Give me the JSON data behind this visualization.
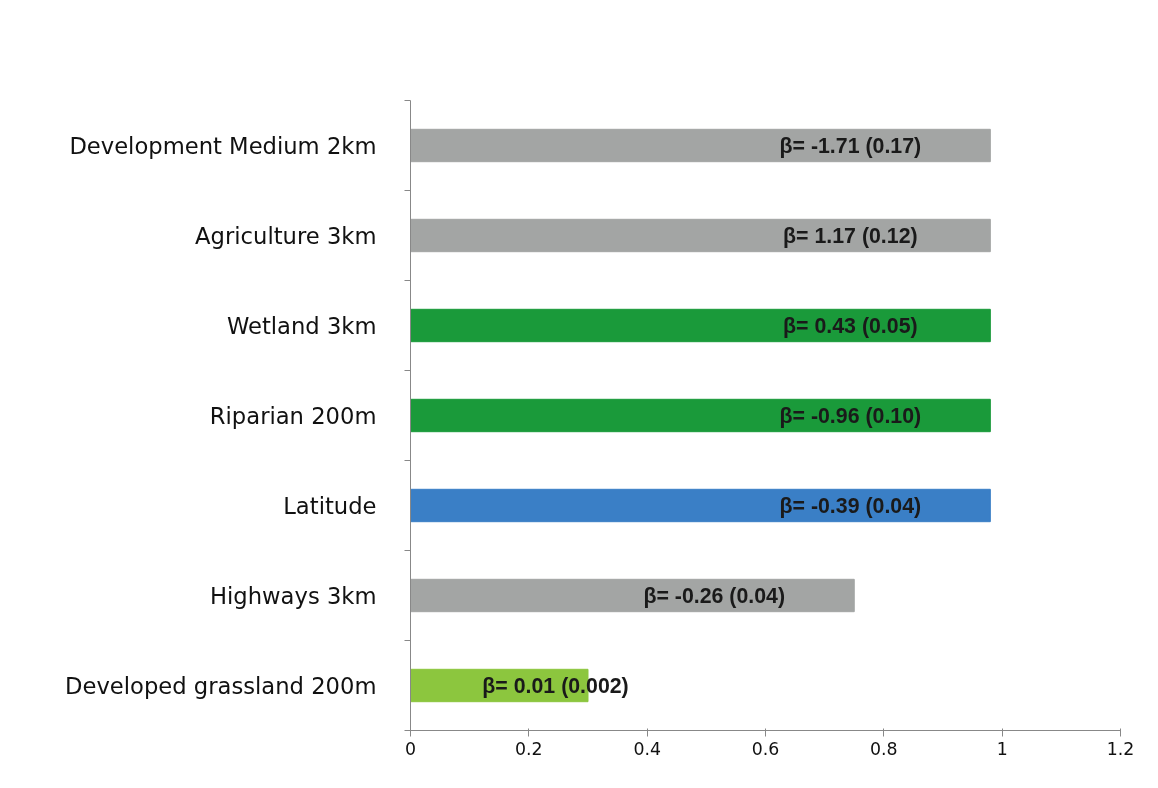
{
  "chart_data": {
    "type": "bar",
    "orientation": "horizontal",
    "categories": [
      "Development Medium 2km",
      "Agriculture 3km",
      "Wetland 3km",
      "Riparian 200m",
      "Latitude",
      "Highways 3km",
      "Developed grassland 200m"
    ],
    "values": [
      0.98,
      0.98,
      0.98,
      0.98,
      0.98,
      0.75,
      0.3
    ],
    "colors": [
      "#a3a5a4",
      "#a3a5a4",
      "#1a9a3a",
      "#1a9a3a",
      "#3a7fc6",
      "#a3a5a4",
      "#8cc63e"
    ],
    "value_labels": [
      "β= -1.71 (0.17)",
      "β= 1.17 (0.12)",
      "β= 0.43 (0.05)",
      "β= -0.96 (0.10)",
      "β= -0.39 (0.04)",
      "β= -0.26 (0.04)",
      "β= 0.01 (0.002)"
    ],
    "xlim": [
      0,
      1.2
    ],
    "xticks": [
      0,
      0.2,
      0.4,
      0.6,
      0.8,
      1,
      1.2
    ],
    "grid": false
  }
}
